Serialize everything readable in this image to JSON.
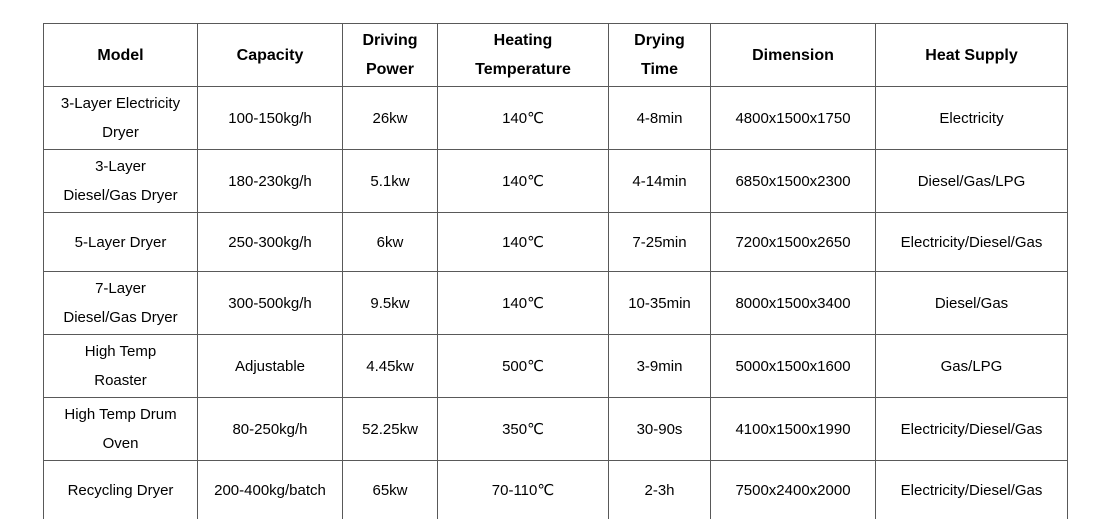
{
  "table": {
    "columns": [
      {
        "id": "model",
        "label": "Model"
      },
      {
        "id": "capacity",
        "label": "Capacity"
      },
      {
        "id": "driving_power",
        "label": "Driving\nPower"
      },
      {
        "id": "heating_temperature",
        "label": "Heating\nTemperature"
      },
      {
        "id": "drying_time",
        "label": "Drying\nTime"
      },
      {
        "id": "dimension",
        "label": "Dimension"
      },
      {
        "id": "heat_supply",
        "label": "Heat Supply"
      }
    ],
    "rows": [
      {
        "model": "3-Layer Electricity\nDryer",
        "capacity": "100-150kg/h",
        "driving_power": "26kw",
        "heating_temperature": "140℃",
        "drying_time": "4-8min",
        "dimension": "4800x1500x1750",
        "heat_supply": "Electricity"
      },
      {
        "model": "3-Layer\nDiesel/Gas Dryer",
        "capacity": "180-230kg/h",
        "driving_power": "5.1kw",
        "heating_temperature": "140℃",
        "drying_time": "4-14min",
        "dimension": "6850x1500x2300",
        "heat_supply": "Diesel/Gas/LPG"
      },
      {
        "model": "5-Layer Dryer",
        "capacity": "250-300kg/h",
        "driving_power": "6kw",
        "heating_temperature": "140℃",
        "drying_time": "7-25min",
        "dimension": "7200x1500x2650",
        "heat_supply": "Electricity/Diesel/Gas"
      },
      {
        "model": "7-Layer\nDiesel/Gas Dryer",
        "capacity": "300-500kg/h",
        "driving_power": "9.5kw",
        "heating_temperature": "140℃",
        "drying_time": "10-35min",
        "dimension": "8000x1500x3400",
        "heat_supply": "Diesel/Gas"
      },
      {
        "model": "High Temp\nRoaster",
        "capacity": "Adjustable",
        "driving_power": "4.45kw",
        "heating_temperature": "500℃",
        "drying_time": "3-9min",
        "dimension": "5000x1500x1600",
        "heat_supply": "Gas/LPG"
      },
      {
        "model": "High Temp Drum\nOven",
        "capacity": "80-250kg/h",
        "driving_power": "52.25kw",
        "heating_temperature": "350℃",
        "drying_time": "30-90s",
        "dimension": "4100x1500x1990",
        "heat_supply": "Electricity/Diesel/Gas"
      },
      {
        "model": "Recycling Dryer",
        "capacity": "200-400kg/batch",
        "driving_power": "65kw",
        "heating_temperature": "70-110℃",
        "drying_time": "2-3h",
        "dimension": "7500x2400x2000",
        "heat_supply": "Electricity/Diesel/Gas"
      }
    ]
  }
}
